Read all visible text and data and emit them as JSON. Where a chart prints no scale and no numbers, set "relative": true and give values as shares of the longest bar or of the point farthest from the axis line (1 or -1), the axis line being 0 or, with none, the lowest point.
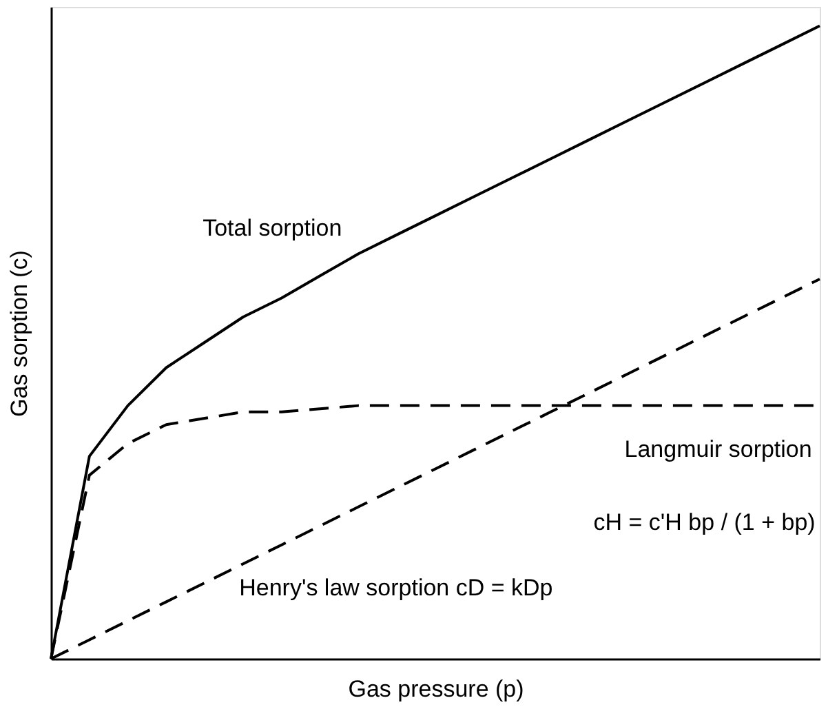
{
  "chart_data": {
    "type": "line",
    "relative": true,
    "xlabel": "Gas pressure (p)",
    "ylabel": "Gas sorption (c)",
    "categories": [
      null,
      null,
      null,
      null,
      null,
      null,
      null,
      null,
      null,
      null,
      null,
      null,
      null,
      null,
      null,
      null,
      null,
      null,
      null,
      null,
      null
    ],
    "series": [
      {
        "name": "Total sorption",
        "color": "#000000",
        "line_style": "solid",
        "values": [
          0,
          0.32,
          0.4,
          0.46,
          0.5,
          0.54,
          0.57,
          0.605,
          0.64,
          0.67,
          0.7,
          0.73,
          0.76,
          0.79,
          0.82,
          0.85,
          0.88,
          0.91,
          0.94,
          0.97,
          1.0
        ]
      },
      {
        "name": "Langmuir sorption",
        "color": "#000000",
        "line_style": "dashed",
        "values": [
          0,
          0.29,
          0.34,
          0.37,
          0.38,
          0.39,
          0.39,
          0.395,
          0.4,
          0.4,
          0.4,
          0.4,
          0.4,
          0.4,
          0.4,
          0.4,
          0.4,
          0.4,
          0.4,
          0.4,
          0.4
        ]
      },
      {
        "name": "Henry's law sorption cD = kDp",
        "color": "#000000",
        "line_style": "dashed",
        "values": [
          0,
          0.03,
          0.06,
          0.09,
          0.12,
          0.15,
          0.18,
          0.21,
          0.24,
          0.27,
          0.3,
          0.33,
          0.36,
          0.39,
          0.42,
          0.45,
          0.48,
          0.51,
          0.54,
          0.57,
          0.6
        ]
      }
    ],
    "annotations": [
      "cH = c'H bp / (1 + bp)"
    ],
    "grid": false,
    "marker": "none"
  }
}
